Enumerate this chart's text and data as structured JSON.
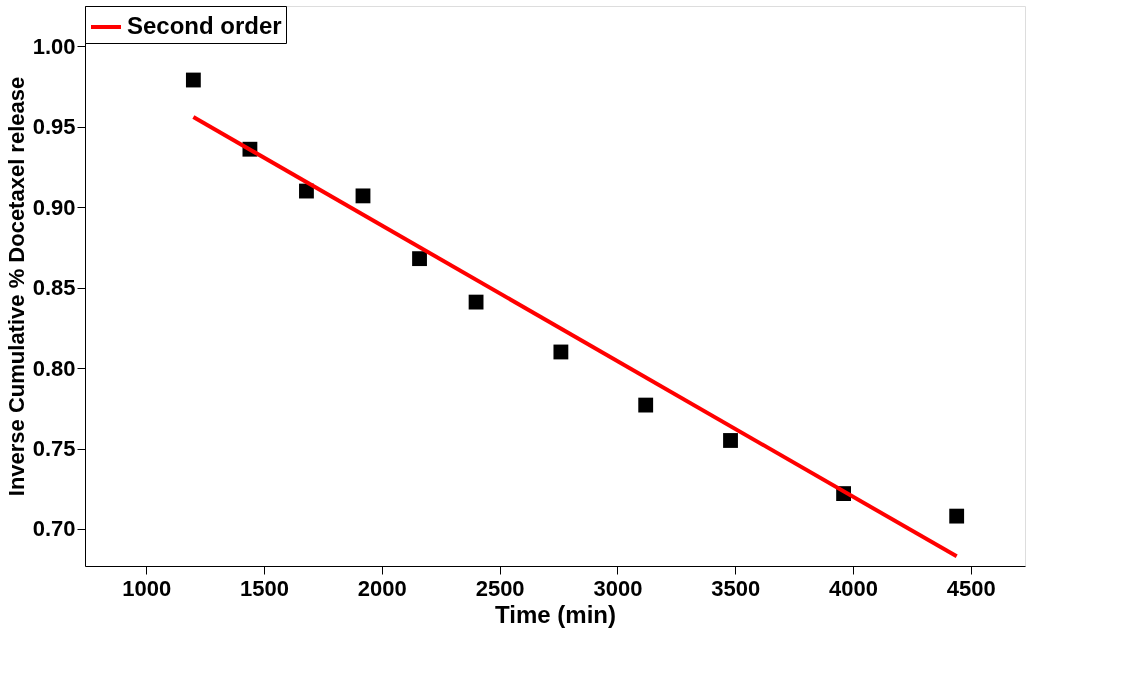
{
  "chart_data": {
    "type": "scatter",
    "xlabel": "Time (min)",
    "ylabel": "Inverse Cumulative % Docetaxel release",
    "x": [
      1200,
      1440,
      1680,
      1920,
      2160,
      2400,
      2760,
      3120,
      3480,
      3960,
      4440
    ],
    "series": [
      {
        "color": "#000000",
        "marker": "square",
        "values": [
          0.979,
          0.936,
          0.91,
          0.907,
          0.868,
          0.841,
          0.81,
          0.777,
          0.755,
          0.722,
          0.708
        ]
      },
      {
        "type": "line",
        "name": "Second order",
        "color": "#ff0000",
        "marker": "none",
        "x": [
          1200,
          4440
        ],
        "values": [
          0.956,
          0.683
        ]
      }
    ],
    "xlim": [
      740,
      4730
    ],
    "xticks": [
      1000,
      1500,
      2000,
      2500,
      3000,
      3500,
      4000,
      4500
    ],
    "ylim": [
      0.677,
      1.025
    ],
    "yticks": [
      {
        "value": 0.7,
        "label": "0.70"
      },
      0.75,
      {
        "value": 0.8,
        "label": "0.80"
      },
      0.85,
      {
        "value": 0.9,
        "label": "0.90"
      },
      0.95,
      {
        "value": 1,
        "label": "1.00"
      }
    ],
    "grid": false,
    "legend": "top left"
  }
}
